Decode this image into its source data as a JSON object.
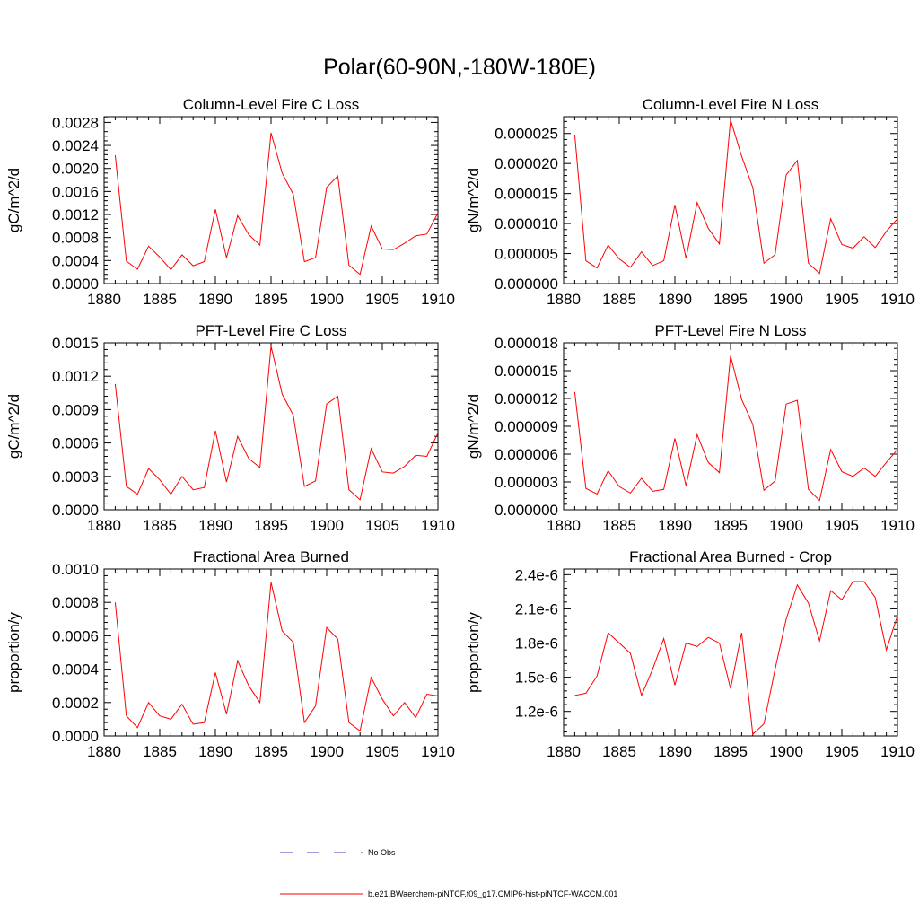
{
  "page_title": "Polar(60-90N,-180W-180E)",
  "colors": {
    "model_line": "#ff0000",
    "obs_line": "#3b3bbf",
    "axis": "#000000"
  },
  "legend": {
    "obs_label": "No Obs",
    "model_label": "b.e21.BWaerchem-piNTCF.f09_g17.CMIP6-hist-piNTCF-WACCM.001"
  },
  "chart_data": [
    {
      "type": "line",
      "title": "Column-Level Fire C Loss",
      "ylabel": "gC/m^2/d",
      "xlim": [
        1880,
        1910
      ],
      "ylim": [
        0,
        0.0029
      ],
      "xticks": [
        1880,
        1885,
        1890,
        1895,
        1900,
        1905,
        1910
      ],
      "yticks": [
        0,
        0.0004,
        0.0008,
        0.0012,
        0.0016,
        0.002,
        0.0024,
        0.0028
      ],
      "yticklabels": [
        "0.0000",
        "0.0004",
        "0.0008",
        "0.0012",
        "0.0016",
        "0.0020",
        "0.0024",
        "0.0028"
      ],
      "x": [
        1881,
        1882,
        1883,
        1884,
        1885,
        1886,
        1887,
        1888,
        1889,
        1890,
        1891,
        1892,
        1893,
        1894,
        1895,
        1896,
        1897,
        1898,
        1899,
        1900,
        1901,
        1902,
        1903,
        1904,
        1905,
        1906,
        1907,
        1908,
        1909,
        1910
      ],
      "values": [
        0.00223,
        0.00039,
        0.00025,
        0.00065,
        0.00046,
        0.00024,
        0.0005,
        0.00031,
        0.00038,
        0.00129,
        0.00045,
        0.00118,
        0.00085,
        0.00067,
        0.00262,
        0.00192,
        0.00155,
        0.00038,
        0.00045,
        0.00167,
        0.00187,
        0.00032,
        0.00016,
        0.001,
        0.0006,
        0.00059,
        0.0007,
        0.00083,
        0.00086,
        0.00123
      ]
    },
    {
      "type": "line",
      "title": "Column-Level Fire N Loss",
      "ylabel": "gN/m^2/d",
      "xlim": [
        1880,
        1910
      ],
      "ylim": [
        0,
        2.78e-05
      ],
      "xticks": [
        1880,
        1885,
        1890,
        1895,
        1900,
        1905,
        1910
      ],
      "yticks": [
        0,
        5e-06,
        1e-05,
        1.5e-05,
        2e-05,
        2.5e-05
      ],
      "yticklabels": [
        "0.000000",
        "0.000005",
        "0.000010",
        "0.000015",
        "0.000020",
        "0.000025"
      ],
      "x": [
        1881,
        1882,
        1883,
        1884,
        1885,
        1886,
        1887,
        1888,
        1889,
        1890,
        1891,
        1892,
        1893,
        1894,
        1895,
        1896,
        1897,
        1898,
        1899,
        1900,
        1901,
        1902,
        1903,
        1904,
        1905,
        1906,
        1907,
        1908,
        1909,
        1910
      ],
      "values": [
        2.48e-05,
        3.8e-06,
        2.6e-06,
        6.4e-06,
        4.1e-06,
        2.7e-06,
        5.3e-06,
        3e-06,
        3.8e-06,
        1.31e-05,
        4.2e-06,
        1.35e-05,
        9.2e-06,
        6.6e-06,
        2.73e-05,
        2.12e-05,
        1.6e-05,
        3.4e-06,
        4.8e-06,
        1.81e-05,
        2.05e-05,
        3.4e-06,
        1.7e-06,
        1.08e-05,
        6.5e-06,
        5.9e-06,
        7.8e-06,
        6e-06,
        8.7e-06,
        1.08e-05
      ]
    },
    {
      "type": "line",
      "title": "PFT-Level Fire C Loss",
      "ylabel": "gC/m^2/d",
      "xlim": [
        1880,
        1910
      ],
      "ylim": [
        0,
        0.0015
      ],
      "xticks": [
        1880,
        1885,
        1890,
        1895,
        1900,
        1905,
        1910
      ],
      "yticks": [
        0,
        0.0003,
        0.0006,
        0.0009,
        0.0012,
        0.0015
      ],
      "yticklabels": [
        "0.0000",
        "0.0003",
        "0.0006",
        "0.0009",
        "0.0012",
        "0.0015"
      ],
      "x": [
        1881,
        1882,
        1883,
        1884,
        1885,
        1886,
        1887,
        1888,
        1889,
        1890,
        1891,
        1892,
        1893,
        1894,
        1895,
        1896,
        1897,
        1898,
        1899,
        1900,
        1901,
        1902,
        1903,
        1904,
        1905,
        1906,
        1907,
        1908,
        1909,
        1910
      ],
      "values": [
        0.00113,
        0.00021,
        0.00014,
        0.00037,
        0.00027,
        0.00014,
        0.0003,
        0.00018,
        0.0002,
        0.00071,
        0.00025,
        0.00066,
        0.00046,
        0.00038,
        0.00147,
        0.00104,
        0.00085,
        0.00021,
        0.00026,
        0.00095,
        0.00102,
        0.00018,
        9e-05,
        0.00055,
        0.00034,
        0.00033,
        0.00039,
        0.00049,
        0.00048,
        0.00069
      ]
    },
    {
      "type": "line",
      "title": "PFT-Level Fire N Loss",
      "ylabel": "gN/m^2/d",
      "xlim": [
        1880,
        1910
      ],
      "ylim": [
        0,
        1.8e-05
      ],
      "xticks": [
        1880,
        1885,
        1890,
        1895,
        1900,
        1905,
        1910
      ],
      "yticks": [
        0,
        3e-06,
        6e-06,
        9e-06,
        1.2e-05,
        1.5e-05,
        1.8e-05
      ],
      "yticklabels": [
        "0.000000",
        "0.000003",
        "0.000006",
        "0.000009",
        "0.000012",
        "0.000015",
        "0.000018"
      ],
      "x": [
        1881,
        1882,
        1883,
        1884,
        1885,
        1886,
        1887,
        1888,
        1889,
        1890,
        1891,
        1892,
        1893,
        1894,
        1895,
        1896,
        1897,
        1898,
        1899,
        1900,
        1901,
        1902,
        1903,
        1904,
        1905,
        1906,
        1907,
        1908,
        1909,
        1910
      ],
      "values": [
        1.27e-05,
        2.3e-06,
        1.7e-06,
        4.2e-06,
        2.5e-06,
        1.8e-06,
        3.4e-06,
        2e-06,
        2.2e-06,
        7.7e-06,
        2.6e-06,
        8.1e-06,
        5.1e-06,
        4e-06,
        1.66e-05,
        1.19e-05,
        9.2e-06,
        2.1e-06,
        3.1e-06,
        1.14e-05,
        1.18e-05,
        2.2e-06,
        1e-06,
        6.5e-06,
        4.1e-06,
        3.6e-06,
        4.5e-06,
        3.6e-06,
        5.1e-06,
        6.5e-06
      ]
    },
    {
      "type": "line",
      "title": "Fractional Area Burned",
      "ylabel": "proportion/y",
      "xlim": [
        1880,
        1910
      ],
      "ylim": [
        0,
        0.001
      ],
      "xticks": [
        1880,
        1885,
        1890,
        1895,
        1900,
        1905,
        1910
      ],
      "yticks": [
        0,
        0.0002,
        0.0004,
        0.0006,
        0.0008,
        0.001
      ],
      "yticklabels": [
        "0.0000",
        "0.0002",
        "0.0004",
        "0.0006",
        "0.0008",
        "0.0010"
      ],
      "x": [
        1881,
        1882,
        1883,
        1884,
        1885,
        1886,
        1887,
        1888,
        1889,
        1890,
        1891,
        1892,
        1893,
        1894,
        1895,
        1896,
        1897,
        1898,
        1899,
        1900,
        1901,
        1902,
        1903,
        1904,
        1905,
        1906,
        1907,
        1908,
        1909,
        1910
      ],
      "values": [
        0.0008,
        0.00012,
        5e-05,
        0.0002,
        0.00012,
        0.0001,
        0.00019,
        7e-05,
        8e-05,
        0.00038,
        0.00013,
        0.00045,
        0.0003,
        0.0002,
        0.00092,
        0.00063,
        0.00056,
        8e-05,
        0.00018,
        0.00065,
        0.00058,
        8e-05,
        3e-05,
        0.00035,
        0.00022,
        0.00012,
        0.0002,
        0.00011,
        0.00025,
        0.00024
      ]
    },
    {
      "type": "line",
      "title": "Fractional Area Burned - Crop",
      "ylabel": "proportion/y",
      "xlim": [
        1880,
        1910
      ],
      "ylim": [
        9.85e-07,
        2.45e-06
      ],
      "xticks": [
        1880,
        1885,
        1890,
        1895,
        1900,
        1905,
        1910
      ],
      "yticks": [
        1.2e-06,
        1.5e-06,
        1.8e-06,
        2.1e-06,
        2.4e-06
      ],
      "yticklabels": [
        "1.2e-6",
        "1.5e-6",
        "1.8e-6",
        "2.1e-6",
        "2.4e-6"
      ],
      "x": [
        1881,
        1882,
        1883,
        1884,
        1885,
        1886,
        1887,
        1888,
        1889,
        1890,
        1891,
        1892,
        1893,
        1894,
        1895,
        1896,
        1897,
        1898,
        1899,
        1900,
        1901,
        1902,
        1903,
        1904,
        1905,
        1906,
        1907,
        1908,
        1909,
        1910
      ],
      "values": [
        1.34e-06,
        1.36e-06,
        1.51e-06,
        1.89e-06,
        1.8e-06,
        1.71e-06,
        1.34e-06,
        1.57e-06,
        1.84e-06,
        1.43e-06,
        1.8e-06,
        1.77e-06,
        1.85e-06,
        1.8e-06,
        1.4e-06,
        1.89e-06,
        1e-06,
        1.09e-06,
        1.57e-06,
        2.01e-06,
        2.31e-06,
        2.15e-06,
        1.82e-06,
        2.26e-06,
        2.18e-06,
        2.34e-06,
        2.34e-06,
        2.2e-06,
        1.74e-06,
        2.04e-06
      ]
    }
  ]
}
